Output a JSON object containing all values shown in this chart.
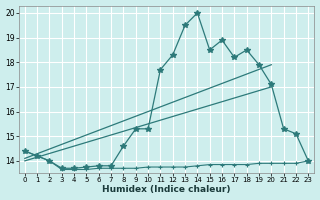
{
  "xlabel": "Humidex (Indice chaleur)",
  "x": [
    0,
    1,
    2,
    3,
    4,
    5,
    6,
    7,
    8,
    9,
    10,
    11,
    12,
    13,
    14,
    15,
    16,
    17,
    18,
    19,
    20,
    21,
    22,
    23
  ],
  "line_main": [
    14.4,
    14.2,
    14.0,
    13.7,
    13.7,
    13.75,
    13.8,
    13.8,
    14.6,
    15.3,
    15.3,
    17.7,
    18.3,
    19.5,
    20.0,
    18.5,
    18.9,
    18.2,
    18.5,
    17.9,
    17.1,
    15.3,
    15.1,
    14.0
  ],
  "line_flat": [
    14.4,
    14.2,
    14.0,
    13.65,
    13.65,
    13.65,
    13.7,
    13.7,
    13.7,
    13.7,
    13.75,
    13.75,
    13.75,
    13.75,
    13.8,
    13.85,
    13.85,
    13.85,
    13.85,
    13.9,
    13.9,
    13.9,
    13.9,
    14.0
  ],
  "trend1_x": [
    0,
    20
  ],
  "trend1_y": [
    14.1,
    17.9
  ],
  "trend2_x": [
    0,
    20
  ],
  "trend2_y": [
    14.0,
    17.0
  ],
  "bg_color": "#ceeeed",
  "line_color": "#2d7a7a",
  "grid_color": "#ffffff",
  "ylim": [
    13.5,
    20.3
  ],
  "xlim": [
    -0.5,
    23.5
  ],
  "yticks": [
    14,
    15,
    16,
    17,
    18,
    19,
    20
  ],
  "xtick_labels": [
    "0",
    "1",
    "2",
    "3",
    "4",
    "5",
    "6",
    "7",
    "8",
    "9",
    "10",
    "11",
    "12",
    "13",
    "14",
    "15",
    "16",
    "17",
    "18",
    "19",
    "20",
    "21",
    "22",
    "23"
  ]
}
